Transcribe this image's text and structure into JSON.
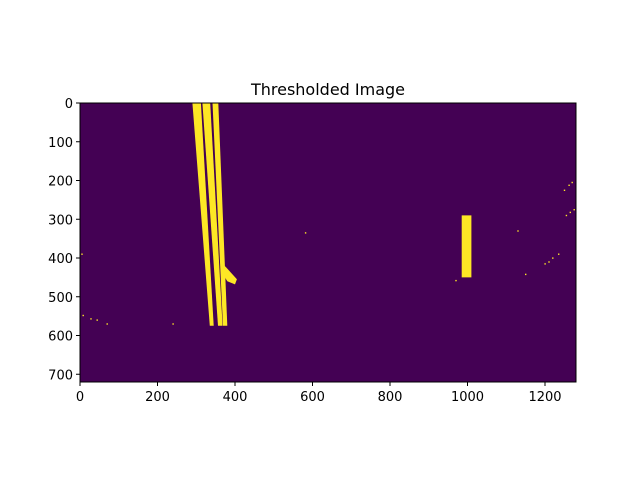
{
  "chart_data": {
    "type": "heatmap",
    "title": "Thresholded Image",
    "xlabel": "",
    "ylabel": "",
    "xlim": [
      0,
      1280
    ],
    "ylim": [
      720,
      0
    ],
    "xticks": [
      0,
      200,
      400,
      600,
      800,
      1000,
      1200
    ],
    "yticks": [
      0,
      100,
      200,
      300,
      400,
      500,
      600,
      700
    ],
    "grid": false,
    "legend": "none",
    "colors": {
      "background": "#440154",
      "foreground": "#fde725"
    },
    "binary_regions": [
      {
        "label": "left-lane-line-1",
        "polygon": [
          [
            290,
            0
          ],
          [
            312,
            0
          ],
          [
            345,
            575
          ],
          [
            335,
            575
          ]
        ]
      },
      {
        "label": "left-lane-line-2",
        "polygon": [
          [
            316,
            0
          ],
          [
            336,
            0
          ],
          [
            368,
            575
          ],
          [
            356,
            575
          ]
        ]
      },
      {
        "label": "left-lane-line-3",
        "polygon": [
          [
            342,
            0
          ],
          [
            357,
            0
          ],
          [
            380,
            575
          ],
          [
            369,
            575
          ]
        ]
      },
      {
        "label": "left-lane-blob",
        "polygon": [
          [
            368,
            415
          ],
          [
            378,
            425
          ],
          [
            405,
            455
          ],
          [
            400,
            468
          ],
          [
            380,
            460
          ],
          [
            368,
            440
          ]
        ]
      },
      {
        "label": "right-lane-segment",
        "polygon": [
          [
            985,
            290
          ],
          [
            1010,
            290
          ],
          [
            1010,
            450
          ],
          [
            985,
            450
          ]
        ]
      }
    ],
    "noise_points": [
      [
        5,
        390
      ],
      [
        8,
        548
      ],
      [
        28,
        557
      ],
      [
        44,
        560
      ],
      [
        70,
        570
      ],
      [
        240,
        570
      ],
      [
        582,
        335
      ],
      [
        970,
        458
      ],
      [
        1130,
        330
      ],
      [
        1150,
        442
      ],
      [
        1200,
        415
      ],
      [
        1210,
        410
      ],
      [
        1220,
        400
      ],
      [
        1235,
        390
      ],
      [
        1250,
        225
      ],
      [
        1262,
        212
      ],
      [
        1270,
        205
      ],
      [
        1255,
        290
      ],
      [
        1265,
        282
      ],
      [
        1275,
        275
      ]
    ]
  }
}
